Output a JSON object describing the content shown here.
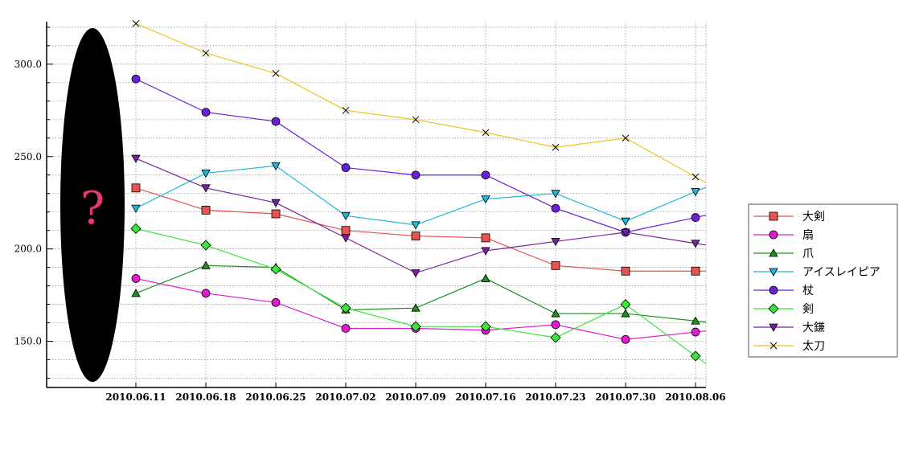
{
  "chart_data": {
    "type": "line",
    "x": [
      "2010.06.11",
      "2010.06.18",
      "2010.06.25",
      "2010.07.02",
      "2010.07.09",
      "2010.07.16",
      "2010.07.23",
      "2010.07.30",
      "2010.08.06"
    ],
    "ylim": [
      125,
      323
    ],
    "y_ticks": [
      "150.0",
      "200.0",
      "250.0",
      "300.0"
    ],
    "y_tick_values": [
      150,
      200,
      250,
      300
    ],
    "grid": true,
    "legend_position": "right",
    "placeholder_glyph": "?",
    "series": [
      {
        "name": "大剣",
        "color": "#e8534f",
        "marker": "square",
        "values": [
          233,
          221,
          219,
          210,
          207,
          206,
          191,
          188,
          188
        ]
      },
      {
        "name": "扇",
        "color": "#e11bd0",
        "marker": "circle",
        "values": [
          184,
          176,
          171,
          157,
          157,
          156,
          159,
          151,
          155
        ]
      },
      {
        "name": "爪",
        "color": "#1f8f1f",
        "marker": "triangle-up",
        "values": [
          176,
          191,
          190,
          167,
          168,
          184,
          165,
          165,
          161
        ]
      },
      {
        "name": "アイスレイピア",
        "color": "#1fb8d8",
        "marker": "triangle-down",
        "values": [
          222,
          241,
          245,
          218,
          213,
          227,
          230,
          215,
          231
        ]
      },
      {
        "name": "杖",
        "color": "#6a1fd8",
        "marker": "circle",
        "values": [
          292,
          274,
          269,
          244,
          240,
          240,
          222,
          209,
          217
        ]
      },
      {
        "name": "剣",
        "color": "#39e639",
        "marker": "diamond",
        "values": [
          211,
          202,
          189,
          168,
          158,
          158,
          152,
          170,
          142
        ]
      },
      {
        "name": "大鎌",
        "color": "#7a1fa0",
        "marker": "triangle-down",
        "values": [
          249,
          233,
          225,
          206,
          187,
          199,
          204,
          209,
          203
        ]
      },
      {
        "name": "太刀",
        "color": "#f2c21f",
        "marker": "x",
        "values": [
          322,
          306,
          295,
          275,
          270,
          263,
          255,
          260,
          239
        ]
      }
    ]
  }
}
